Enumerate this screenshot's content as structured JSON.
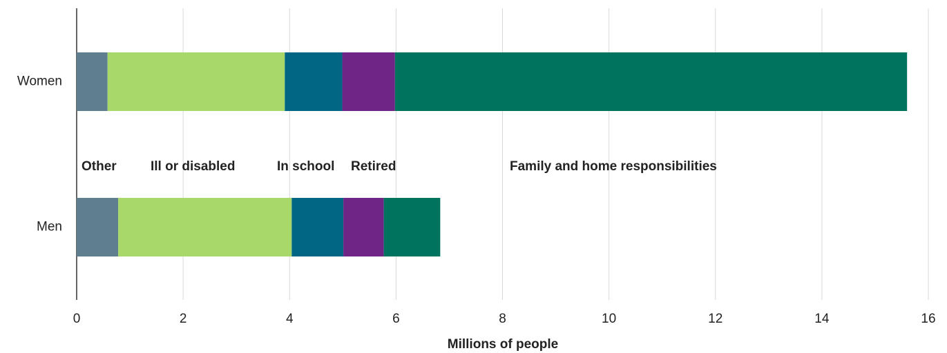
{
  "chart_data": {
    "type": "stacked-bar-horizontal",
    "categories": [
      "Women",
      "Men"
    ],
    "series": [
      {
        "name": "Other",
        "color": "#5f7f8f",
        "values": [
          0.58,
          0.78
        ]
      },
      {
        "name": "Ill or disabled",
        "color": "#a8d86a",
        "values": [
          3.33,
          3.26
        ]
      },
      {
        "name": "In school",
        "color": "#006683",
        "values": [
          1.08,
          0.97
        ]
      },
      {
        "name": "Retired",
        "color": "#6e2585",
        "values": [
          0.99,
          0.76
        ]
      },
      {
        "name": "Family and home responsibilities",
        "color": "#00735f",
        "values": [
          9.62,
          1.06
        ]
      }
    ],
    "xlabel": "Millions of people",
    "xlim": [
      0,
      16
    ],
    "xticks": [
      0,
      2,
      4,
      6,
      8,
      10,
      12,
      14,
      16
    ],
    "grid": true
  }
}
